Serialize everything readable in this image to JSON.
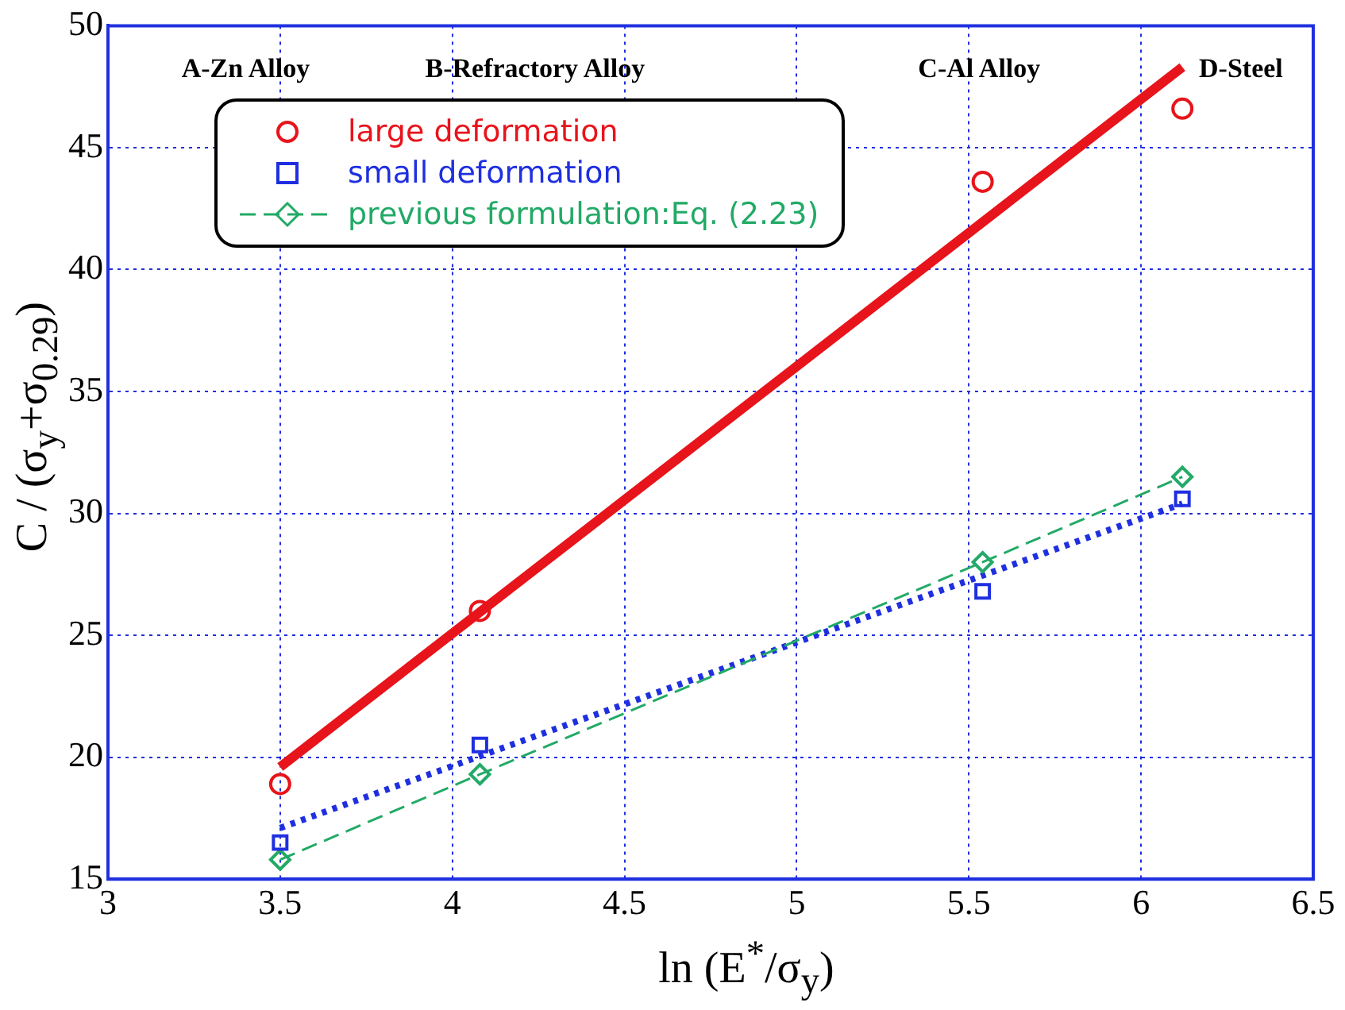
{
  "chart_data": {
    "type": "scatter",
    "xlabel": "ln (E$^{*}$/σ$_{y}$)",
    "ylabel": "C / (σ$_{y}$+σ$_{0.29}$)",
    "xlim": [
      3,
      6.5
    ],
    "xticks": [
      3,
      3.5,
      4,
      4.5,
      5,
      5.5,
      6,
      6.5
    ],
    "ylim": [
      15,
      50
    ],
    "yticks": [
      15,
      20,
      25,
      30,
      35,
      40,
      45,
      50
    ],
    "grid": true,
    "legend": "top left",
    "series": [
      {
        "name": "large deformation",
        "color": "#e8141b",
        "marker": "circle",
        "x": [
          3.5,
          4.08,
          5.54,
          6.12
        ],
        "values": [
          18.9,
          26,
          43.6,
          46.6
        ]
      },
      {
        "name": "small deformation",
        "color": "#1f2fe0",
        "marker": "square",
        "x": [
          3.5,
          4.08,
          5.54,
          6.12
        ],
        "values": [
          16.5,
          20.5,
          26.8,
          30.6
        ]
      },
      {
        "name": "previous formulation:Eq. (2.23)",
        "type": "line",
        "color": "#22aa66",
        "marker": "diamond",
        "line_style": "dashed",
        "x": [
          3.5,
          4.08,
          5.54,
          6.12
        ],
        "values": [
          15.8,
          19.3,
          28,
          31.5
        ]
      },
      {
        "type": "line",
        "color": "#e8141b",
        "marker": "none",
        "line_style": "solid",
        "x": [
          3.5,
          6.12
        ],
        "values": [
          19.6,
          48.3
        ]
      },
      {
        "type": "line",
        "color": "#1f2fe0",
        "marker": "none",
        "line_style": "dotted",
        "x": [
          3.5,
          6.12
        ],
        "values": [
          17.1,
          30.4
        ]
      }
    ],
    "annotations": [
      "A-Zn Alloy",
      "B-Refractory Alloy",
      "C-Al Alloy",
      "D-Steel"
    ]
  }
}
